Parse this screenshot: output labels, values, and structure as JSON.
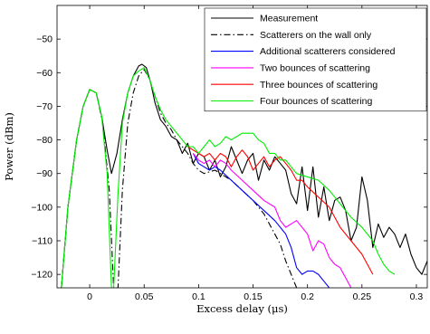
{
  "chart_data": {
    "type": "line",
    "title": "",
    "xlabel": "Excess delay (μs)",
    "ylabel": "Power (dBm)",
    "xlim": [
      -0.03,
      0.31
    ],
    "ylim": [
      -124,
      -40
    ],
    "xticks": [
      0,
      0.05,
      0.1,
      0.15,
      0.2,
      0.25,
      0.3
    ],
    "xtick_labels": [
      "0",
      "0.05",
      "0.1",
      "0.15",
      "0.2",
      "0.25",
      "0.3"
    ],
    "yticks": [
      -120,
      -110,
      -100,
      -90,
      -80,
      -70,
      -60,
      -50
    ],
    "ytick_labels": [
      "−120",
      "−110",
      "−100",
      "−90",
      "−80",
      "−70",
      "−60",
      "−50"
    ],
    "grid": false,
    "legend_position": "top-right",
    "series": [
      {
        "name": "Measurement",
        "color": "#000000",
        "dash": "solid",
        "x": [
          -0.026,
          -0.02,
          -0.012,
          -0.006,
          0.0,
          0.006,
          0.011,
          0.016,
          0.02,
          0.025,
          0.03,
          0.035,
          0.04,
          0.045,
          0.048,
          0.052,
          0.056,
          0.06,
          0.065,
          0.07,
          0.075,
          0.08,
          0.085,
          0.09,
          0.095,
          0.1,
          0.105,
          0.11,
          0.115,
          0.12,
          0.125,
          0.13,
          0.135,
          0.14,
          0.145,
          0.15,
          0.155,
          0.16,
          0.165,
          0.17,
          0.175,
          0.18,
          0.185,
          0.19,
          0.195,
          0.2,
          0.205,
          0.21,
          0.215,
          0.22,
          0.225,
          0.23,
          0.235,
          0.24,
          0.245,
          0.25,
          0.255,
          0.26,
          0.265,
          0.27,
          0.275,
          0.28,
          0.285,
          0.29,
          0.295,
          0.3,
          0.305,
          0.31
        ],
        "y": [
          -124,
          -100,
          -80,
          -70,
          -65,
          -66,
          -73,
          -83,
          -90,
          -84,
          -74,
          -66,
          -61,
          -58,
          -57.5,
          -58.5,
          -63,
          -69,
          -74,
          -76,
          -79,
          -80,
          -84,
          -81,
          -87,
          -84,
          -85,
          -89,
          -86,
          -91,
          -88,
          -82,
          -86,
          -90,
          -86,
          -84,
          -92,
          -86,
          -89,
          -85,
          -87,
          -89,
          -96,
          -99,
          -88,
          -101,
          -88,
          -103,
          -94,
          -104,
          -98,
          -97,
          -101,
          -110,
          -106,
          -91,
          -98,
          -112,
          -105,
          -109,
          -106,
          -108,
          -112,
          -108,
          -114,
          -118,
          -120,
          -116
        ]
      },
      {
        "name": "Scatterers on the wall only",
        "color": "#000000",
        "dash": "dashdot",
        "x": [
          -0.026,
          -0.02,
          -0.012,
          -0.006,
          0.0,
          0.006,
          0.012,
          0.018,
          0.022,
          0.026,
          0.03,
          0.035,
          0.04,
          0.045,
          0.05,
          0.055,
          0.06,
          0.065,
          0.07,
          0.075,
          0.08,
          0.085,
          0.09,
          0.095,
          0.1,
          0.105,
          0.11,
          0.115,
          0.12,
          0.13,
          0.14,
          0.15,
          0.16,
          0.17,
          0.175,
          0.18,
          0.185,
          0.19
        ],
        "y": [
          -124,
          -100,
          -80,
          -70,
          -65,
          -66,
          -75,
          -95,
          -124,
          -124,
          -95,
          -75,
          -66,
          -61,
          -59,
          -62,
          -67,
          -72,
          -75,
          -77,
          -80,
          -82,
          -84,
          -87,
          -89,
          -90,
          -89.5,
          -89,
          -90,
          -92,
          -95,
          -98,
          -102,
          -108,
          -111,
          -116,
          -120,
          -124
        ]
      },
      {
        "name": "Additional scatterers considered",
        "color": "#0000ff",
        "dash": "solid",
        "x": [
          0.095,
          0.1,
          0.105,
          0.11,
          0.115,
          0.12,
          0.13,
          0.14,
          0.15,
          0.16,
          0.17,
          0.18,
          0.185,
          0.19,
          0.195,
          0.2,
          0.205,
          0.21,
          0.215,
          0.22
        ],
        "y": [
          -84,
          -87,
          -88,
          -89,
          -88,
          -89,
          -92,
          -95,
          -98,
          -101,
          -104,
          -108,
          -112,
          -118,
          -120,
          -119,
          -119,
          -120,
          -122,
          -124
        ]
      },
      {
        "name": "Two bounces of scattering",
        "color": "#ff00ff",
        "dash": "solid",
        "x": [
          0.095,
          0.1,
          0.105,
          0.11,
          0.115,
          0.12,
          0.125,
          0.13,
          0.14,
          0.15,
          0.16,
          0.17,
          0.175,
          0.18,
          0.19,
          0.2,
          0.205,
          0.21,
          0.215,
          0.22,
          0.225,
          0.23,
          0.235,
          0.24
        ],
        "y": [
          -84,
          -86,
          -87,
          -86,
          -88,
          -86,
          -87,
          -89,
          -92,
          -95,
          -98,
          -100,
          -104,
          -106,
          -104,
          -108,
          -113,
          -110,
          -111,
          -115,
          -117,
          -118,
          -121,
          -124
        ]
      },
      {
        "name": "Three bounces of scattering",
        "color": "#ff0000",
        "dash": "solid",
        "x": [
          0.09,
          0.1,
          0.105,
          0.11,
          0.115,
          0.12,
          0.125,
          0.13,
          0.135,
          0.14,
          0.145,
          0.15,
          0.155,
          0.16,
          0.165,
          0.17,
          0.175,
          0.18,
          0.185,
          0.19,
          0.195,
          0.2,
          0.21,
          0.22,
          0.23,
          0.24,
          0.25,
          0.255,
          0.26
        ],
        "y": [
          -82,
          -84,
          -85,
          -84,
          -86,
          -84,
          -85,
          -88,
          -85,
          -83,
          -85,
          -89,
          -87,
          -85,
          -88,
          -86,
          -85,
          -87,
          -89,
          -92,
          -92,
          -94,
          -97,
          -100,
          -106,
          -110,
          -114,
          -117,
          -120
        ]
      },
      {
        "name": "Four bounces of scattering",
        "color": "#00ee00",
        "dash": "solid",
        "x": [
          -0.026,
          -0.02,
          -0.012,
          -0.006,
          0.0,
          0.006,
          0.011,
          0.016,
          0.02,
          0.022,
          0.026,
          0.03,
          0.035,
          0.04,
          0.045,
          0.05,
          0.055,
          0.06,
          0.065,
          0.07,
          0.075,
          0.08,
          0.085,
          0.09,
          0.095,
          0.1,
          0.105,
          0.11,
          0.115,
          0.12,
          0.125,
          0.13,
          0.135,
          0.14,
          0.145,
          0.15,
          0.155,
          0.16,
          0.165,
          0.17,
          0.175,
          0.18,
          0.185,
          0.19,
          0.2,
          0.21,
          0.22,
          0.23,
          0.24,
          0.25,
          0.26,
          0.265,
          0.27,
          0.275,
          0.28
        ],
        "y": [
          -124,
          -100,
          -80,
          -70,
          -65,
          -66,
          -73,
          -90,
          -124,
          -124,
          -96,
          -75,
          -66,
          -61,
          -59.5,
          -58.5,
          -62,
          -67,
          -71,
          -74,
          -76,
          -78,
          -80,
          -82,
          -82,
          -84,
          -82,
          -80,
          -82,
          -81,
          -79,
          -80,
          -79,
          -78,
          -78,
          -78,
          -80,
          -81,
          -84,
          -84,
          -86,
          -86,
          -88,
          -90,
          -91,
          -92,
          -95,
          -99,
          -103,
          -106,
          -110,
          -114,
          -117,
          -119,
          -120
        ]
      }
    ]
  }
}
